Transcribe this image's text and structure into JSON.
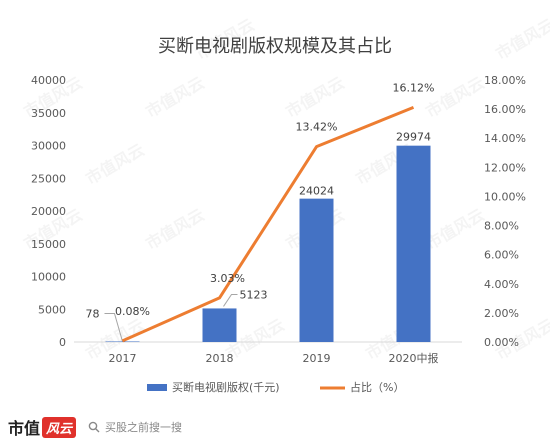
{
  "chart_data": {
    "type": "bar",
    "title": "买断电视剧版权规模及其占比",
    "categories": [
      "2017",
      "2018",
      "2019",
      "2020中报"
    ],
    "series": [
      {
        "name": "买断电视剧版权(千元)",
        "type": "bar",
        "axis": "left",
        "color": "#4472c4",
        "values": [
          78,
          5123,
          24024,
          29974
        ],
        "labels": [
          "78",
          "5123",
          "24024",
          "29974"
        ]
      },
      {
        "name": "占比（%）",
        "type": "line",
        "axis": "right",
        "color": "#ed7d31",
        "values": [
          0.08,
          3.03,
          13.42,
          16.12
        ],
        "labels": [
          "0.08%",
          "3.03%",
          "13.42%",
          "16.12%"
        ]
      }
    ],
    "y_left": {
      "min": 0,
      "max": 40000,
      "ticks": [
        "0",
        "5000",
        "10000",
        "15000",
        "20000",
        "25000",
        "30000",
        "35000",
        "40000"
      ]
    },
    "y_right": {
      "min": 0,
      "max": 18,
      "ticks": [
        "0.00%",
        "2.00%",
        "4.00%",
        "6.00%",
        "8.00%",
        "10.00%",
        "12.00%",
        "14.00%",
        "16.00%",
        "18.00%"
      ]
    },
    "grid": false,
    "legend_position": "bottom"
  },
  "watermark": "市值风云",
  "footer": {
    "brand_prefix": "市值",
    "brand_suffix": "风云",
    "search_placeholder": "买股之前搜一搜",
    "search_icon": "search-icon"
  }
}
